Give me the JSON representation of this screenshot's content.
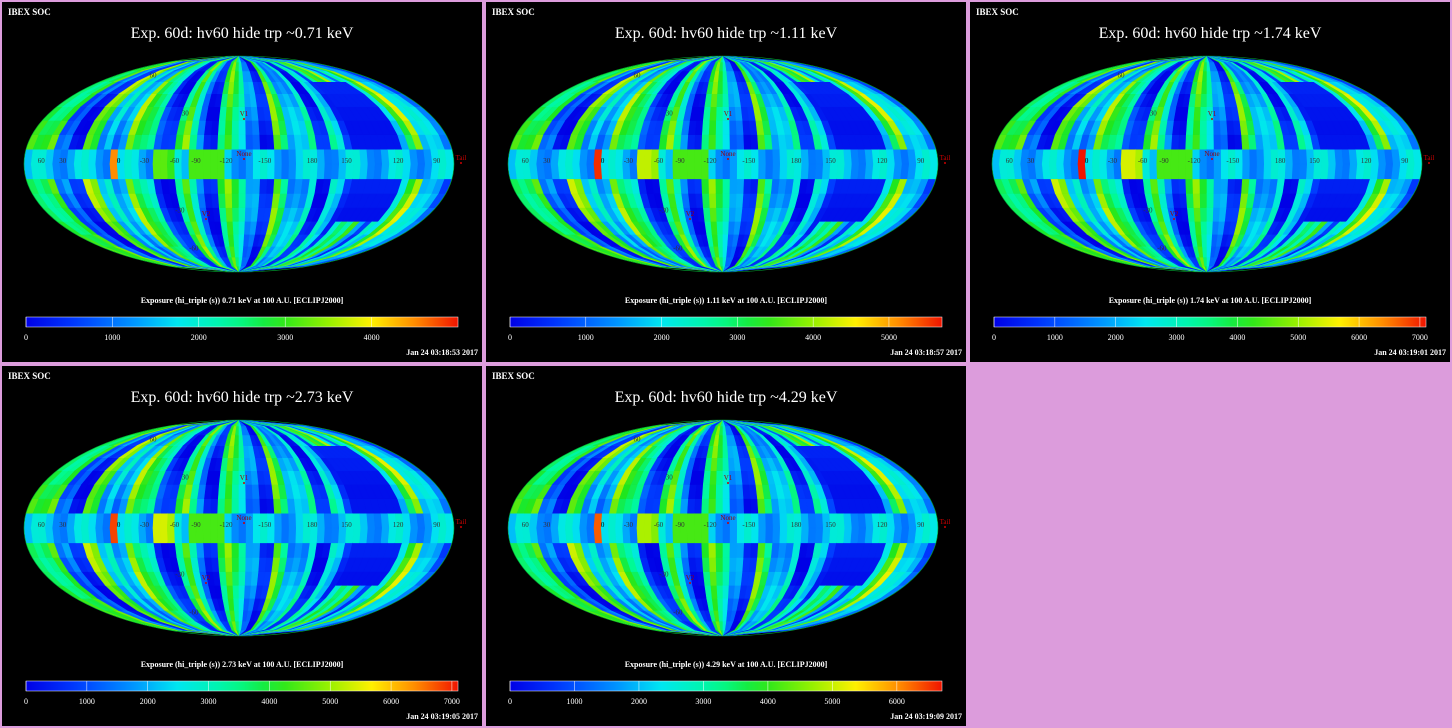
{
  "page": {
    "background": "#dc9cdc"
  },
  "chart_data": [
    {
      "type": "heatmap",
      "projection": "mollweide",
      "header": "IBEX SOC",
      "title": "Exp.   60d: hv60 hide trp ~0.71 keV",
      "colorbar_label": "Exposure (hi_triple (s))  0.71 keV at 100 A.U. [ECLIPJ2000]",
      "colorbar_ticks": [
        0,
        1000,
        2000,
        3000,
        4000
      ],
      "colorbar_range": [
        0,
        5000
      ],
      "timestamp": "Jan 24 03:18:53 2017",
      "markers": [
        "V1",
        "None",
        "V2",
        "Tail"
      ],
      "longitude_labels": [
        "60",
        "30",
        "0",
        "-30",
        "-60",
        "-90",
        "-120",
        "-150",
        "180",
        "150",
        "120",
        "90"
      ],
      "latitude_labels": [
        "30",
        "-30",
        "60",
        "-60"
      ],
      "hotspots": [
        0.82,
        0.6
      ]
    },
    {
      "type": "heatmap",
      "projection": "mollweide",
      "header": "IBEX SOC",
      "title": "Exp.   60d: hv60 hide trp ~1.11 keV",
      "colorbar_label": "Exposure (hi_triple (s))  1.11 keV at 100 A.U. [ECLIPJ2000]",
      "colorbar_ticks": [
        0,
        1000,
        2000,
        3000,
        4000,
        5000
      ],
      "colorbar_range": [
        0,
        5700
      ],
      "timestamp": "Jan 24 03:18:57 2017",
      "markers": [
        "V1",
        "None",
        "V2",
        "Tail"
      ],
      "longitude_labels": [
        "60",
        "30",
        "0",
        "-30",
        "-60",
        "-90",
        "-120",
        "-150",
        "180",
        "150",
        "120",
        "90"
      ],
      "latitude_labels": [
        "30",
        "-30",
        "60",
        "-60"
      ],
      "hotspots": [
        0.9,
        0.7
      ]
    },
    {
      "type": "heatmap",
      "projection": "mollweide",
      "header": "IBEX SOC",
      "title": "Exp.   60d: hv60 hide trp ~1.74 keV",
      "colorbar_label": "Exposure (hi_triple (s))  1.74 keV at 100 A.U. [ECLIPJ2000]",
      "colorbar_ticks": [
        0,
        1000,
        2000,
        3000,
        4000,
        5000,
        6000,
        7000
      ],
      "colorbar_range": [
        0,
        7100
      ],
      "timestamp": "Jan 24 03:19:01 2017",
      "markers": [
        "V1",
        "None",
        "V2",
        "Tail"
      ],
      "longitude_labels": [
        "60",
        "30",
        "0",
        "-30",
        "-60",
        "-90",
        "-120",
        "-150",
        "180",
        "150",
        "120",
        "90"
      ],
      "latitude_labels": [
        "30",
        "-30",
        "60",
        "-60"
      ],
      "hotspots": [
        0.92,
        0.72
      ]
    },
    {
      "type": "heatmap",
      "projection": "mollweide",
      "header": "IBEX SOC",
      "title": "Exp.   60d: hv60 hide trp ~2.73 keV",
      "colorbar_label": "Exposure (hi_triple (s))  2.73 keV at 100 A.U. [ECLIPJ2000]",
      "colorbar_ticks": [
        0,
        1000,
        2000,
        3000,
        4000,
        5000,
        6000,
        7000
      ],
      "colorbar_range": [
        0,
        7100
      ],
      "timestamp": "Jan 24 03:19:05 2017",
      "markers": [
        "V1",
        "None",
        "V2",
        "Tail"
      ],
      "longitude_labels": [
        "60",
        "30",
        "0",
        "-30",
        "-60",
        "-90",
        "-120",
        "-150",
        "180",
        "150",
        "120",
        "90"
      ],
      "latitude_labels": [
        "30",
        "-30",
        "60",
        "-60"
      ],
      "hotspots": [
        0.88,
        0.72
      ]
    },
    {
      "type": "heatmap",
      "projection": "mollweide",
      "header": "IBEX SOC",
      "title": "Exp.   60d: hv60 hide trp ~4.29 keV",
      "colorbar_label": "Exposure (hi_triple (s))  4.29 keV at 100 A.U. [ECLIPJ2000]",
      "colorbar_ticks": [
        0,
        1000,
        2000,
        3000,
        4000,
        5000,
        6000
      ],
      "colorbar_range": [
        0,
        6700
      ],
      "timestamp": "Jan 24 03:19:09 2017",
      "markers": [
        "V1",
        "None",
        "V2",
        "Tail"
      ],
      "longitude_labels": [
        "60",
        "30",
        "0",
        "-30",
        "-60",
        "-90",
        "-120",
        "-150",
        "180",
        "150",
        "120",
        "90"
      ],
      "latitude_labels": [
        "30",
        "-30",
        "60",
        "-60"
      ],
      "hotspots": [
        0.86,
        0.68
      ]
    }
  ]
}
